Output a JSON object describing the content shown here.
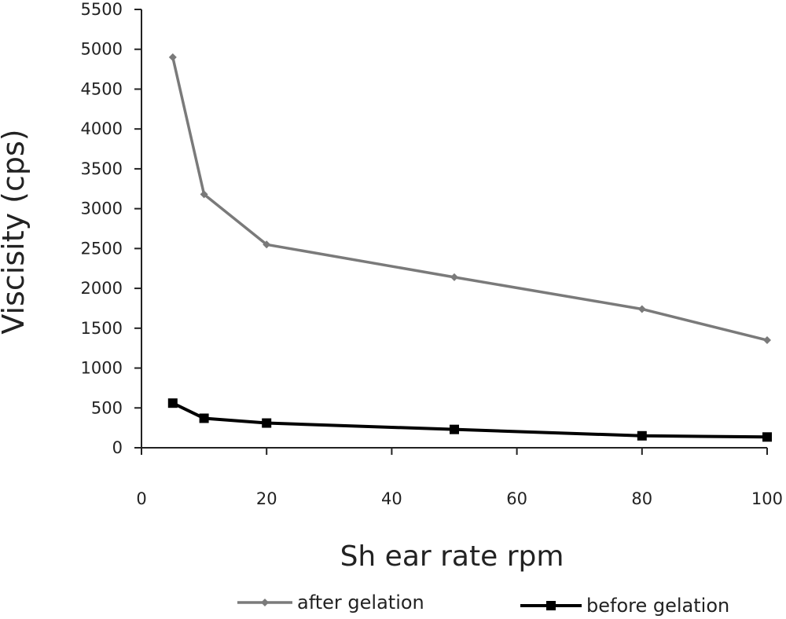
{
  "chart_data": {
    "type": "line",
    "xlabel": "Sh ear rate rpm",
    "ylabel": "Viscisity (cps)",
    "xlim": [
      0,
      100
    ],
    "ylim": [
      0,
      5500
    ],
    "xticks": [
      0,
      20,
      40,
      60,
      80,
      100
    ],
    "yticks": [
      0,
      500,
      1000,
      1500,
      2000,
      2500,
      3000,
      3500,
      4000,
      4500,
      5000,
      5500
    ],
    "grid": false,
    "legend_position": "bottom",
    "series": [
      {
        "name": "after gelation",
        "color": "#7a7a7a",
        "marker": "diamond",
        "x": [
          5,
          10,
          20,
          50,
          80,
          100
        ],
        "y": [
          4900,
          3180,
          2550,
          2140,
          1740,
          1350
        ]
      },
      {
        "name": "before gelation",
        "color": "#000000",
        "marker": "square",
        "x": [
          5,
          10,
          20,
          50,
          80,
          100
        ],
        "y": [
          560,
          370,
          310,
          230,
          150,
          135
        ]
      }
    ]
  }
}
